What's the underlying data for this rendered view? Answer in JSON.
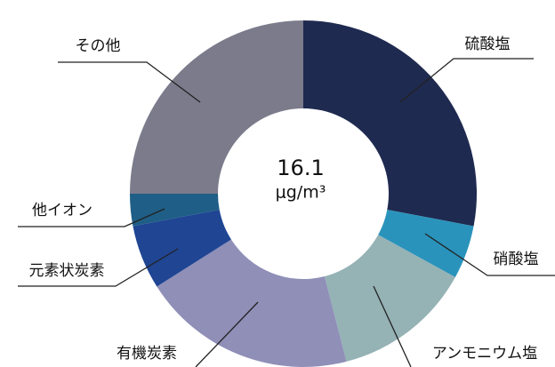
{
  "chart_data": {
    "type": "donut",
    "categories": [
      "硫酸塩",
      "硝酸塩",
      "アンモニウム塩",
      "有機炭素",
      "元素状炭素",
      "他イオン",
      "その他"
    ],
    "values": [
      28,
      5,
      13,
      20,
      6,
      3,
      25
    ],
    "colors": [
      "#1f2a50",
      "#2a93bb",
      "#95b2b5",
      "#8f8fb8",
      "#1f4593",
      "#1f5e86",
      "#7b7b8c"
    ],
    "total": "16.1",
    "unit": "μg/m³"
  }
}
